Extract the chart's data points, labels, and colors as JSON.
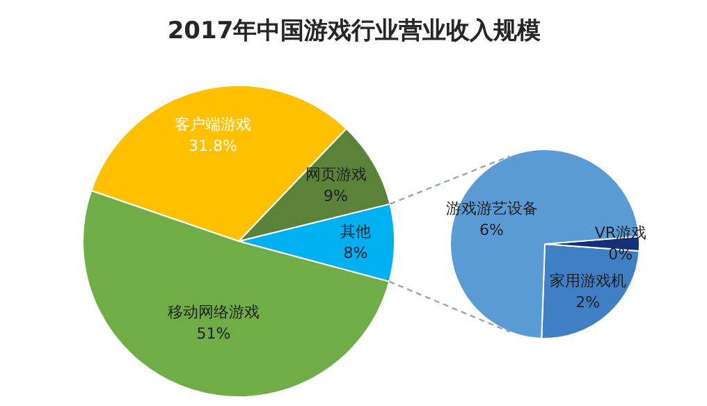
{
  "chart_data": [
    {
      "type": "pie",
      "title": "2017年中国游戏行业营业收入规模",
      "categories": [
        "其他",
        "网页游戏",
        "客户端游戏",
        "移动网络游戏"
      ],
      "values": [
        8,
        9,
        31.8,
        51
      ],
      "colors": [
        "#00b0f0",
        "#5a8238",
        "#ffc000",
        "#70ad47"
      ],
      "value_labels": [
        "8%",
        "9%",
        "31.8%",
        "51%"
      ]
    },
    {
      "type": "pie",
      "categories": [
        "家用游戏机",
        "VR游戏",
        "游戏游艺设备"
      ],
      "values": [
        2,
        0.2,
        6
      ],
      "value_labels": [
        "2%",
        "0%",
        "6%"
      ],
      "colors": [
        "#3f7fc4",
        "#14307a",
        "#5b9bd5"
      ]
    }
  ]
}
